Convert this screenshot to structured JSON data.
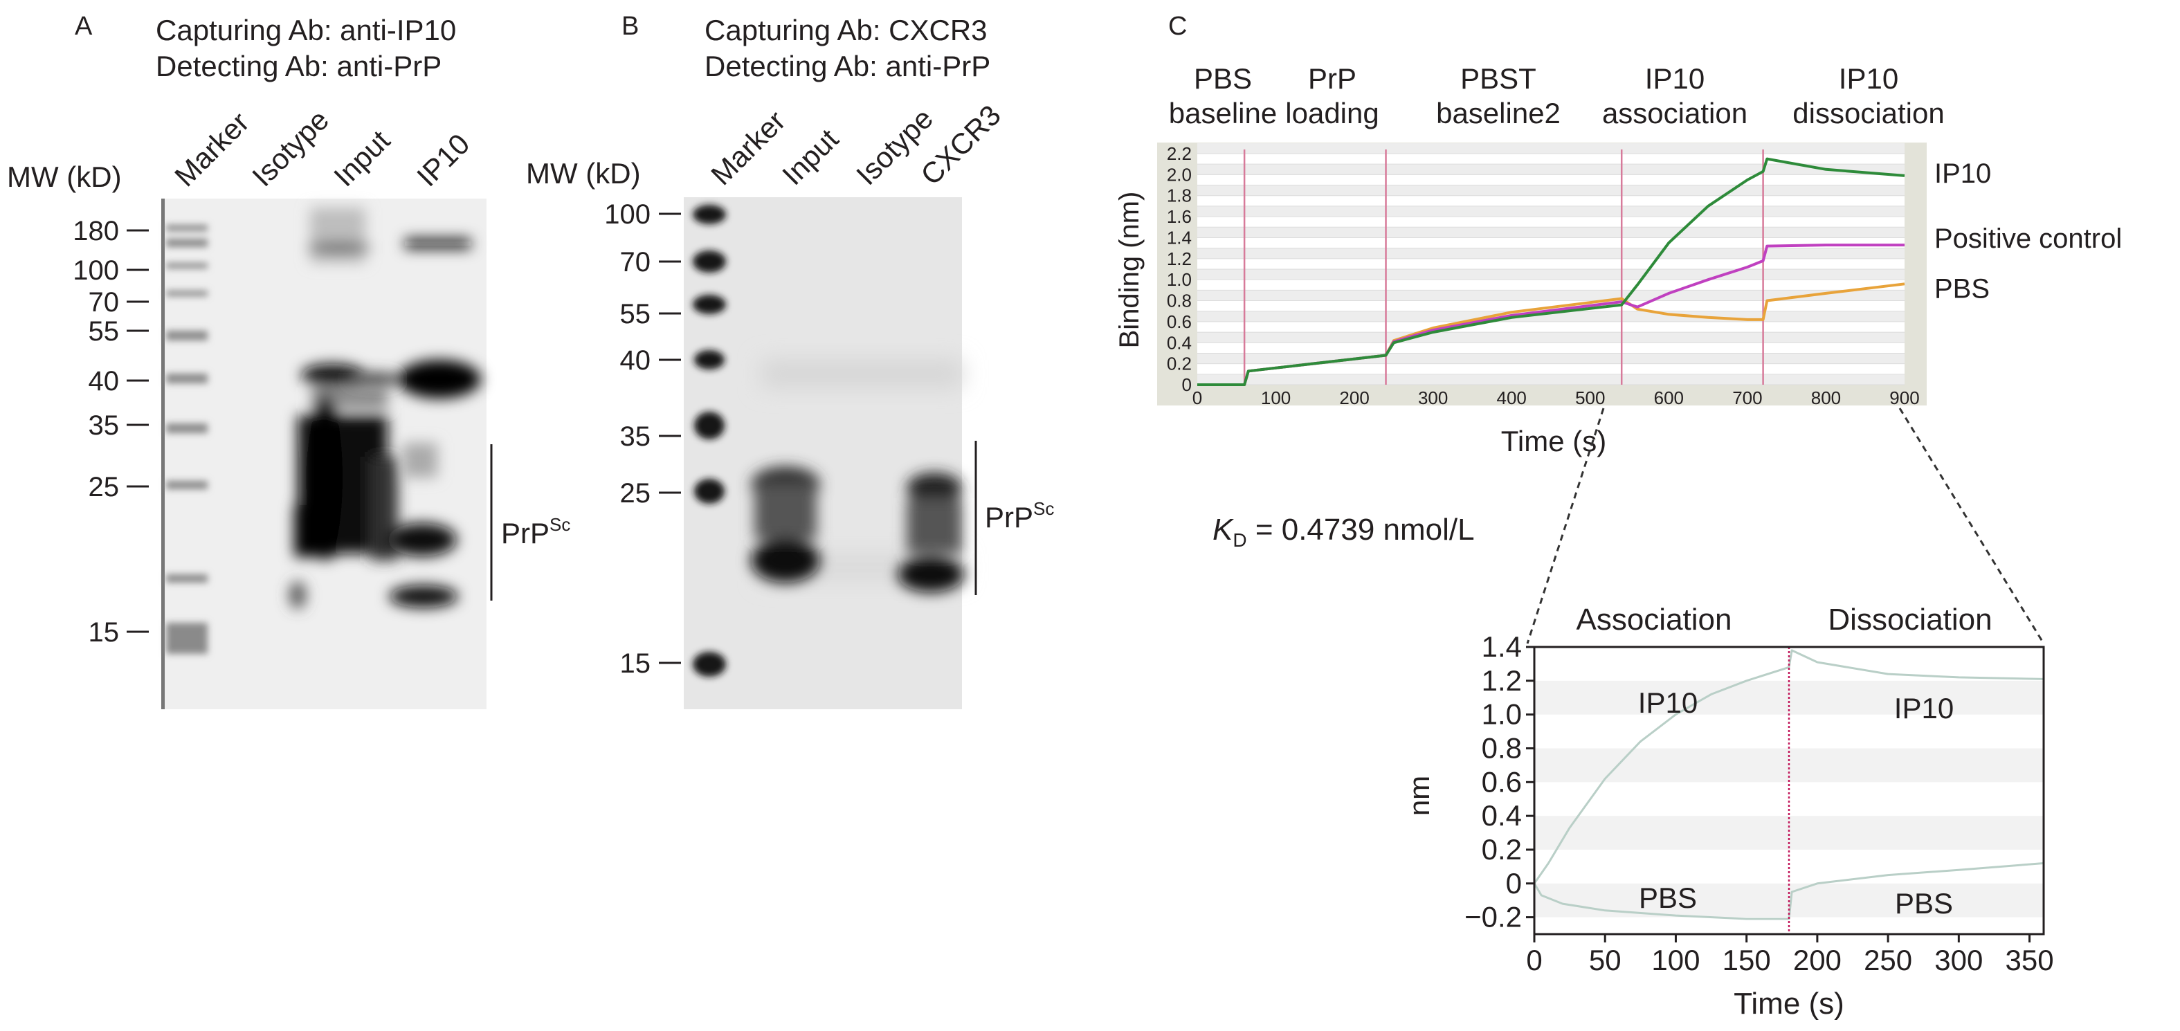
{
  "panelA": {
    "letter": "A",
    "line1": "Capturing Ab: anti-IP10",
    "line2": "Detecting Ab: anti-PrP",
    "mw_label": "MW (kD)",
    "lanes": [
      "Marker",
      "Isotype",
      "Input",
      "IP10"
    ],
    "mw_ticks": [
      "180",
      "100",
      "70",
      "55",
      "40",
      "35",
      "25",
      "15"
    ],
    "bracket_base": "PrP",
    "bracket_sup": "Sc"
  },
  "panelB": {
    "letter": "B",
    "line1": "Capturing Ab: CXCR3",
    "line2": "Detecting Ab: anti-PrP",
    "mw_label": "MW (kD)",
    "lanes": [
      "Marker",
      "Input",
      "Isotype",
      "CXCR3"
    ],
    "mw_ticks": [
      "100",
      "70",
      "55",
      "40",
      "35",
      "25",
      "15"
    ],
    "bracket_base": "PrP",
    "bracket_sup": "Sc"
  },
  "panelC": {
    "letter": "C",
    "phases": [
      {
        "l1": "PBS",
        "l2": "baseline"
      },
      {
        "l1": "PrP",
        "l2": "loading"
      },
      {
        "l1": "PBST",
        "l2": "baseline2"
      },
      {
        "l1": "IP10",
        "l2": "association"
      },
      {
        "l1": "IP10",
        "l2": "dissociation"
      }
    ],
    "kd": {
      "symbol": "K",
      "sub": "D",
      "text": " = 0.4739 nmol/L"
    }
  },
  "chart_data": [
    {
      "type": "line",
      "xlabel": "Time (s)",
      "ylabel": "Binding (nm)",
      "xlim": [
        0,
        900
      ],
      "ylim": [
        0,
        2.2
      ],
      "x_ticks": [
        0,
        100,
        200,
        300,
        400,
        500,
        600,
        700,
        800,
        900
      ],
      "y_ticks": [
        "2.2",
        "2.0",
        "1.8",
        "1.6",
        "1.4",
        "1.2",
        "1.0",
        "0.8",
        "0.6",
        "0.4",
        "0.2",
        "0"
      ],
      "phase_boundaries": [
        60,
        240,
        540,
        720
      ],
      "grid": true,
      "series": [
        {
          "name": "IP10",
          "color": "#2e8b3a",
          "x": [
            0,
            60,
            65,
            240,
            250,
            300,
            400,
            540,
            560,
            600,
            650,
            700,
            720,
            725,
            800,
            900
          ],
          "y": [
            0,
            0,
            0.13,
            0.28,
            0.4,
            0.5,
            0.64,
            0.76,
            0.95,
            1.35,
            1.7,
            1.95,
            2.03,
            2.15,
            2.05,
            1.99
          ]
        },
        {
          "name": "Positive control",
          "color": "#c040c0",
          "x": [
            0,
            60,
            65,
            240,
            250,
            300,
            400,
            540,
            560,
            600,
            650,
            700,
            720,
            725,
            800,
            900
          ],
          "y": [
            0,
            0,
            0.13,
            0.28,
            0.41,
            0.52,
            0.66,
            0.79,
            0.74,
            0.87,
            1.0,
            1.12,
            1.18,
            1.32,
            1.33,
            1.33
          ]
        },
        {
          "name": "PBS",
          "color": "#e8a33a",
          "x": [
            0,
            60,
            65,
            240,
            250,
            300,
            400,
            540,
            560,
            600,
            650,
            700,
            720,
            725,
            800,
            900
          ],
          "y": [
            0,
            0,
            0.13,
            0.28,
            0.42,
            0.54,
            0.69,
            0.82,
            0.72,
            0.67,
            0.64,
            0.62,
            0.62,
            0.8,
            0.87,
            0.96
          ]
        }
      ]
    },
    {
      "type": "line",
      "xlabel": "Time (s)",
      "ylabel": "nm",
      "xlim": [
        0,
        360
      ],
      "ylim": [
        -0.3,
        1.4
      ],
      "x_ticks": [
        0,
        50,
        100,
        150,
        200,
        250,
        300,
        350
      ],
      "y_ticks": [
        "1.4",
        "1.2",
        "1.0",
        "0.8",
        "0.6",
        "0.4",
        "0.2",
        "0",
        "−0.2"
      ],
      "boundary": 180,
      "section_titles": [
        "Association",
        "Dissociation"
      ],
      "annotations": [
        "IP10",
        "IP10",
        "PBS",
        "PBS"
      ],
      "series": [
        {
          "name": "IP10",
          "color": "#b9cfc7",
          "x": [
            0,
            10,
            25,
            50,
            75,
            100,
            125,
            150,
            180,
            182,
            200,
            250,
            300,
            360
          ],
          "y": [
            0,
            0.12,
            0.33,
            0.62,
            0.84,
            1.0,
            1.12,
            1.2,
            1.28,
            1.38,
            1.31,
            1.24,
            1.22,
            1.21
          ]
        },
        {
          "name": "PBS",
          "color": "#b9cfc7",
          "x": [
            0,
            5,
            20,
            50,
            100,
            150,
            180,
            182,
            200,
            250,
            300,
            360
          ],
          "y": [
            0,
            -0.07,
            -0.12,
            -0.16,
            -0.19,
            -0.21,
            -0.21,
            -0.05,
            0.0,
            0.05,
            0.08,
            0.12
          ]
        }
      ]
    }
  ]
}
